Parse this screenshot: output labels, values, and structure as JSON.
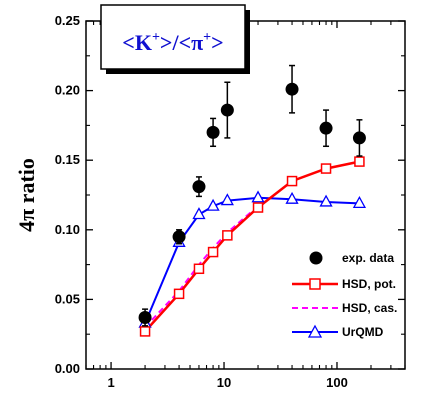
{
  "chart_data": {
    "type": "line",
    "title": "<K⁺>/<π⁺>",
    "title_parts": {
      "open": "<K",
      "sup1": "+",
      "mid": ">/<π",
      "sup2": "+",
      "close": ">"
    },
    "ylabel": "4π ratio",
    "xlabel": "",
    "x_scale": "log",
    "xlim": [
      0.6,
      400
    ],
    "ylim": [
      0.0,
      0.25
    ],
    "x_tick_labels": [
      "1",
      "10",
      "100"
    ],
    "x_tick_values": [
      1,
      10,
      100
    ],
    "y_tick_labels": [
      "0.00",
      "0.05",
      "0.10",
      "0.15",
      "0.20",
      "0.25"
    ],
    "y_tick_values": [
      0.0,
      0.05,
      0.1,
      0.15,
      0.2,
      0.25
    ],
    "legend_position": "lower-right",
    "series": [
      {
        "name": "exp. data",
        "marker": "filled-circle",
        "color": "#000000",
        "points": [
          {
            "x": 2.0,
            "y": 0.037,
            "err": 0.006
          },
          {
            "x": 4.0,
            "y": 0.095,
            "err": 0.005
          },
          {
            "x": 6.0,
            "y": 0.131,
            "err": 0.007
          },
          {
            "x": 8.0,
            "y": 0.17,
            "err": 0.01
          },
          {
            "x": 10.7,
            "y": 0.186,
            "err": 0.02
          },
          {
            "x": 40.0,
            "y": 0.201,
            "err": 0.017
          },
          {
            "x": 80.0,
            "y": 0.173,
            "err": 0.013
          },
          {
            "x": 158.0,
            "y": 0.166,
            "err": 0.013
          }
        ]
      },
      {
        "name": "HSD, pot.",
        "marker": "open-square",
        "color": "#ff0000",
        "line": "solid",
        "points": [
          {
            "x": 2.0,
            "y": 0.027
          },
          {
            "x": 4.0,
            "y": 0.054
          },
          {
            "x": 6.0,
            "y": 0.072
          },
          {
            "x": 8.0,
            "y": 0.084
          },
          {
            "x": 10.7,
            "y": 0.096
          },
          {
            "x": 20.0,
            "y": 0.116
          },
          {
            "x": 40.0,
            "y": 0.135
          },
          {
            "x": 80.0,
            "y": 0.144
          },
          {
            "x": 158.0,
            "y": 0.149
          }
        ]
      },
      {
        "name": "HSD, cas.",
        "marker": "none",
        "color": "#ff00ff",
        "line": "dashed",
        "points": [
          {
            "x": 2.0,
            "y": 0.03
          },
          {
            "x": 4.0,
            "y": 0.056
          },
          {
            "x": 6.0,
            "y": 0.075
          },
          {
            "x": 8.0,
            "y": 0.087
          },
          {
            "x": 10.7,
            "y": 0.098
          },
          {
            "x": 20.0,
            "y": 0.117
          }
        ]
      },
      {
        "name": "UrQMD",
        "marker": "open-triangle",
        "color": "#0000ff",
        "line": "solid",
        "points": [
          {
            "x": 2.0,
            "y": 0.033
          },
          {
            "x": 4.0,
            "y": 0.091
          },
          {
            "x": 6.0,
            "y": 0.111
          },
          {
            "x": 8.0,
            "y": 0.117
          },
          {
            "x": 10.7,
            "y": 0.121
          },
          {
            "x": 20.0,
            "y": 0.123
          },
          {
            "x": 40.0,
            "y": 0.122
          },
          {
            "x": 80.0,
            "y": 0.12
          },
          {
            "x": 158.0,
            "y": 0.119
          }
        ]
      }
    ]
  }
}
